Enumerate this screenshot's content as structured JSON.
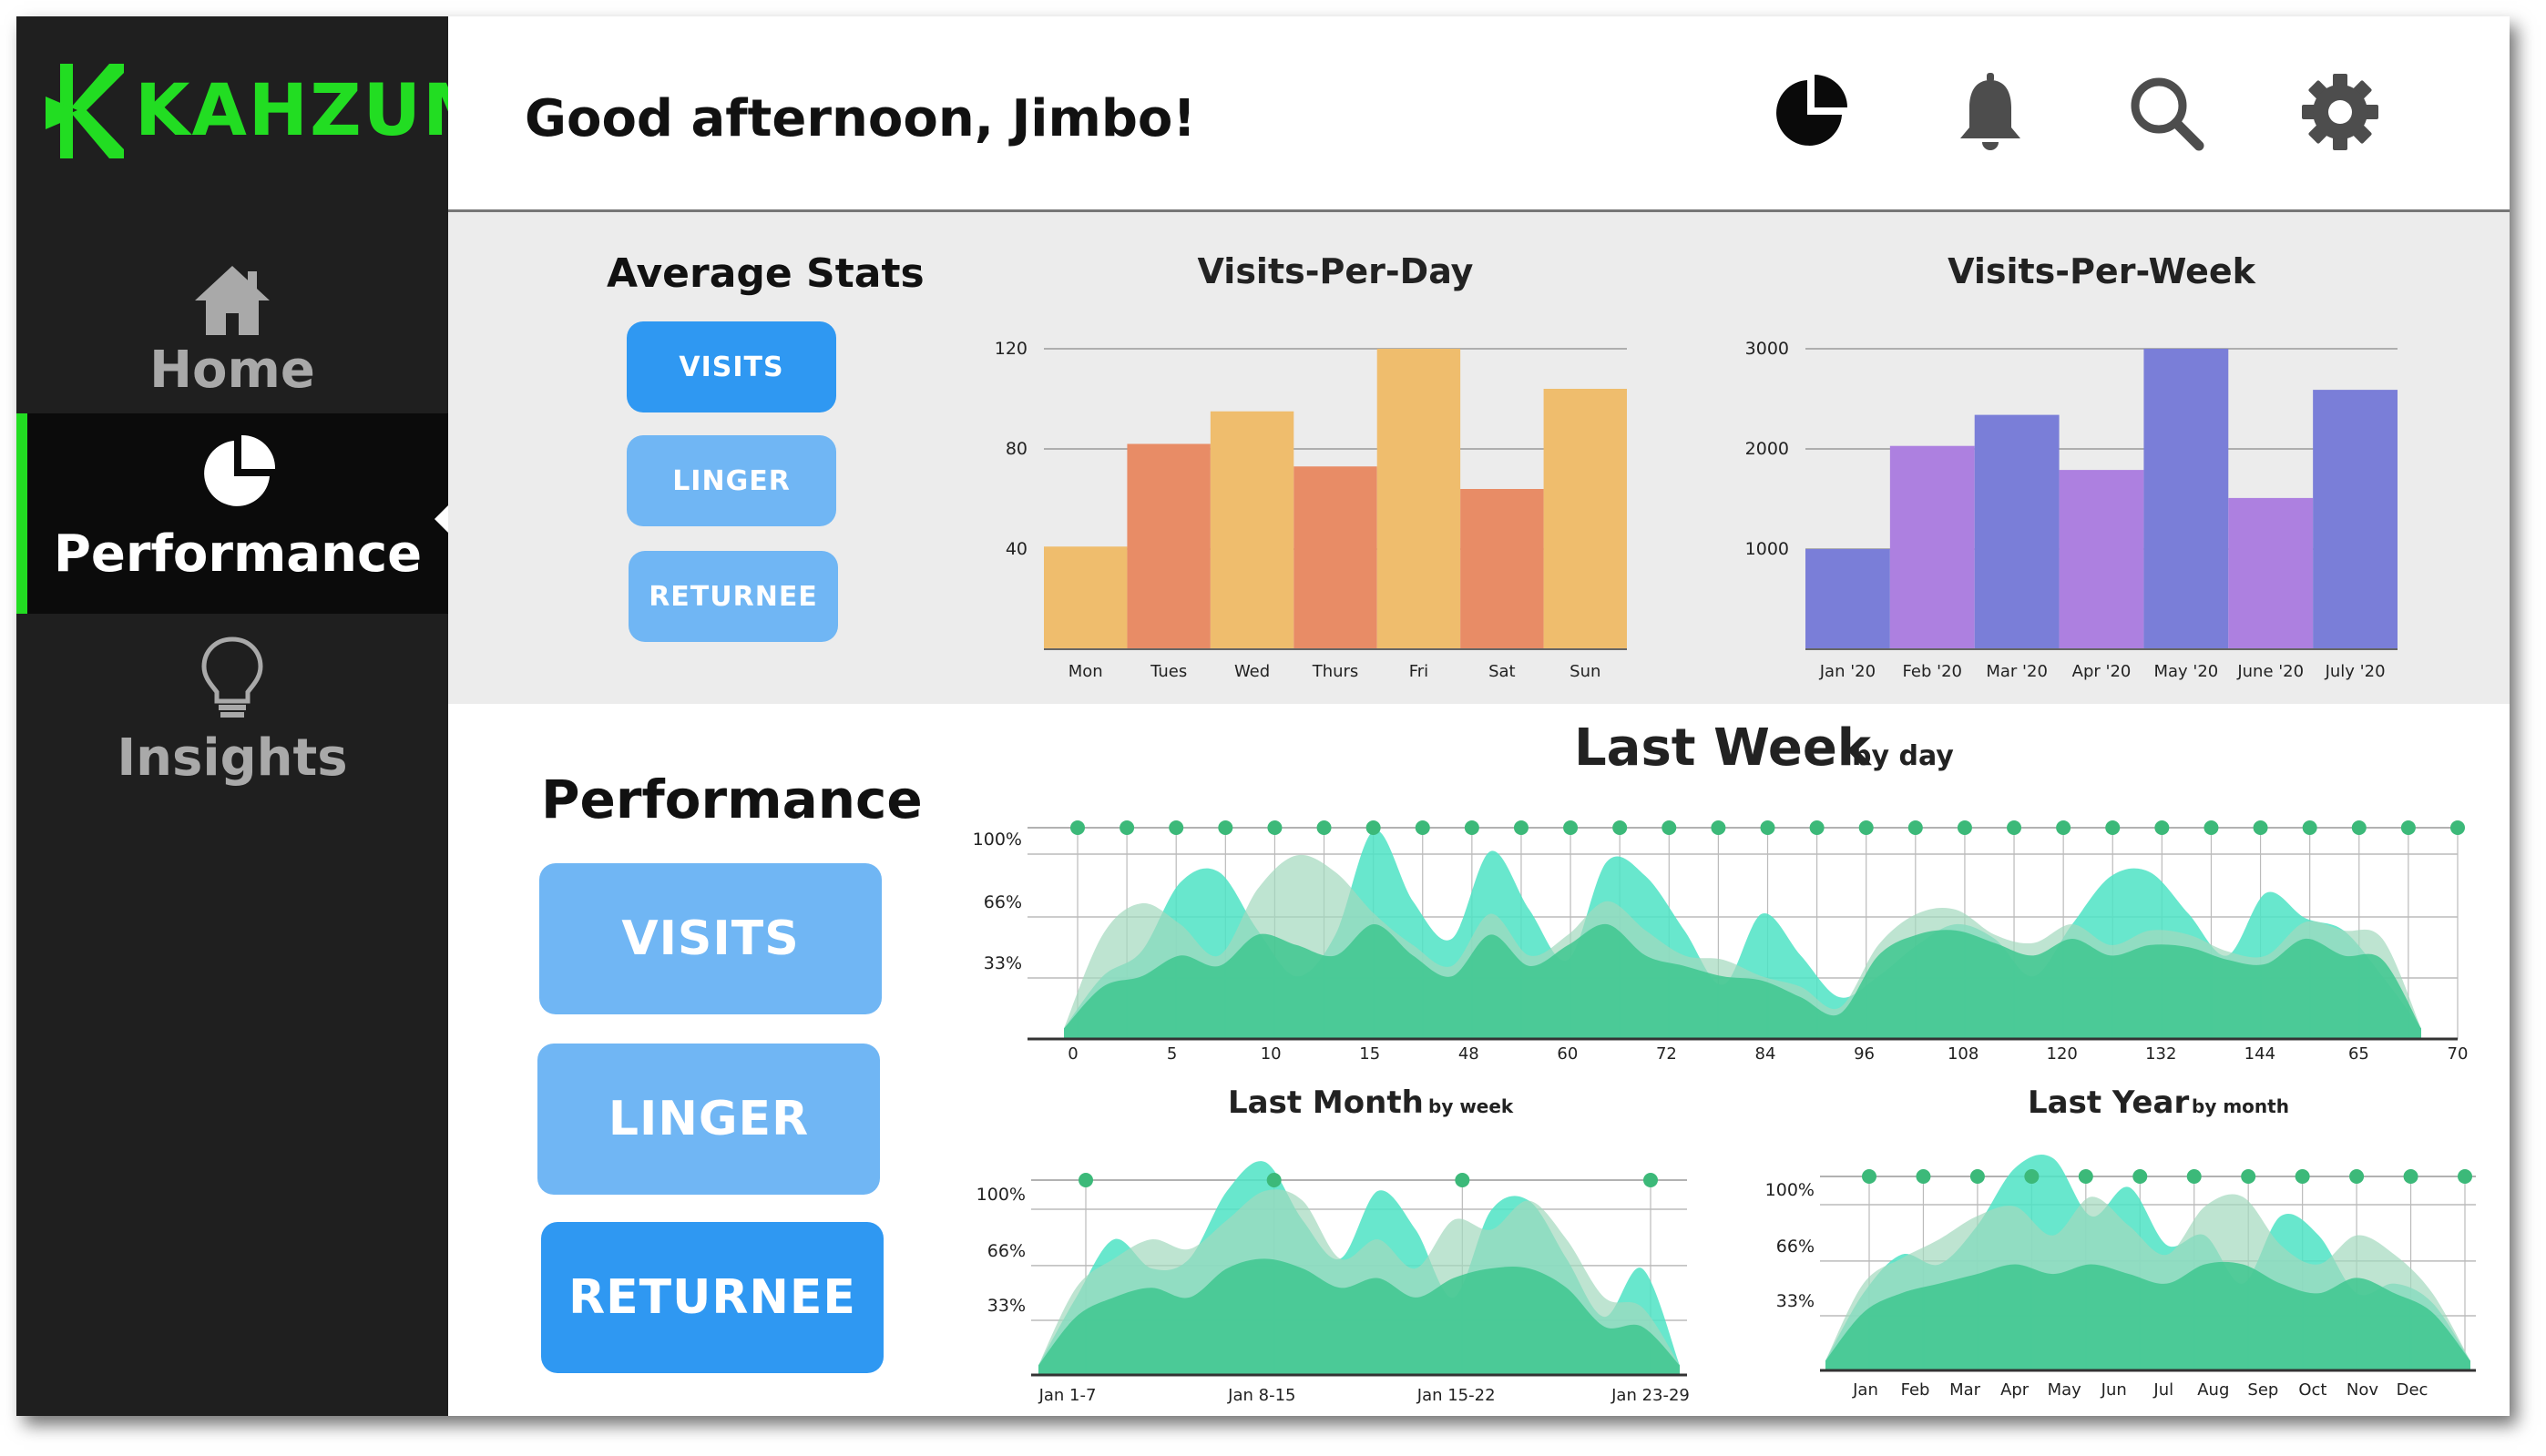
{
  "brand": {
    "name": "KAHZUM",
    "accent": "#22dd22"
  },
  "sidebar": {
    "items": [
      {
        "label": "Home",
        "icon": "home-icon"
      },
      {
        "label": "Performance",
        "icon": "pie-chart-icon",
        "active": true
      },
      {
        "label": "Insights",
        "icon": "lightbulb-icon"
      }
    ]
  },
  "header": {
    "greeting": "Good afternoon, Jimbo!",
    "icons": [
      "pie-chart-icon",
      "bell-icon",
      "search-icon",
      "gear-icon"
    ]
  },
  "average_stats": {
    "title": "Average Stats",
    "buttons": [
      "VISITS",
      "LINGER",
      "RETURNEE"
    ]
  },
  "performance": {
    "title": "Performance",
    "buttons": [
      "VISITS",
      "LINGER",
      "RETURNEE"
    ]
  },
  "chart_data": [
    {
      "type": "bar",
      "title": "Visits-Per-Day",
      "categories": [
        "Mon",
        "Tues",
        "Wed",
        "Thurs",
        "Fri",
        "Sat",
        "Sun"
      ],
      "values": [
        41,
        82,
        95,
        73,
        120,
        64,
        104
      ],
      "yticks": [
        40,
        80,
        120
      ],
      "ylim": [
        0,
        120
      ],
      "colors": [
        "#efbd6d",
        "#e88c66",
        "#efbd6d",
        "#e88c66",
        "#efbd6d",
        "#e88c66",
        "#efbd6d"
      ]
    },
    {
      "type": "bar",
      "title": "Visits-Per-Week",
      "categories": [
        "Jan '20",
        "Feb '20",
        "Mar '20",
        "Apr '20",
        "May '20",
        "June '20",
        "July '20"
      ],
      "values": [
        1000,
        2030,
        2340,
        1790,
        3000,
        1510,
        2590
      ],
      "yticks": [
        1000,
        2000,
        3000
      ],
      "ylim": [
        0,
        3000
      ],
      "colors": [
        "#7a7ed8",
        "#ad80e0",
        "#7a7ed8",
        "#ad80e0",
        "#7a7ed8",
        "#ad80e0",
        "#7a7ed8"
      ]
    },
    {
      "type": "area",
      "title": "Last Week",
      "subtitle": "by day",
      "ytick_labels": [
        "100%",
        "66%",
        "33%"
      ],
      "xtick_labels": [
        "0",
        "5",
        "10",
        "15",
        "48",
        "60",
        "72",
        "84",
        "96",
        "108",
        "120",
        "132",
        "144",
        "65",
        "70"
      ],
      "marker_count": 29,
      "series": [
        {
          "values": [
            5,
            30,
            42,
            75,
            80,
            52,
            30,
            50,
            100,
            66,
            48,
            90,
            62,
            38,
            85,
            78,
            52,
            26,
            60,
            40,
            20,
            30,
            45,
            55,
            48,
            30,
            55,
            78,
            80,
            60,
            40,
            70,
            58,
            52,
            30,
            5
          ]
        },
        {
          "values": [
            5,
            50,
            65,
            55,
            40,
            72,
            88,
            80,
            60,
            45,
            35,
            60,
            40,
            50,
            66,
            52,
            40,
            38,
            30,
            25,
            15,
            45,
            60,
            62,
            50,
            46,
            55,
            45,
            52,
            50,
            42,
            40,
            56,
            52,
            48,
            5
          ]
        },
        {
          "values": [
            5,
            25,
            30,
            40,
            35,
            50,
            45,
            40,
            55,
            40,
            30,
            50,
            35,
            45,
            55,
            40,
            35,
            30,
            28,
            20,
            12,
            40,
            50,
            52,
            46,
            40,
            48,
            40,
            45,
            44,
            38,
            36,
            48,
            40,
            38,
            5
          ]
        }
      ]
    },
    {
      "type": "area",
      "title": "Last Month",
      "subtitle": "by week",
      "ytick_labels": [
        "100%",
        "66%",
        "33%"
      ],
      "xtick_labels": [
        "Jan 1-7",
        "Jan 8-15",
        "Jan 15-22",
        "Jan 23-29"
      ],
      "marker_count": 4,
      "series": [
        {
          "values": [
            5,
            40,
            70,
            55,
            60,
            95,
            110,
            80,
            60,
            95,
            75,
            40,
            85,
            90,
            60,
            30,
            55,
            5
          ]
        },
        {
          "values": [
            5,
            45,
            60,
            70,
            65,
            80,
            95,
            90,
            60,
            70,
            55,
            80,
            75,
            90,
            70,
            40,
            35,
            5
          ]
        },
        {
          "values": [
            5,
            30,
            40,
            45,
            40,
            55,
            60,
            55,
            45,
            50,
            40,
            50,
            55,
            55,
            45,
            25,
            25,
            5
          ]
        }
      ]
    },
    {
      "type": "area",
      "title": "Last Year",
      "subtitle": "by month",
      "ytick_labels": [
        "100%",
        "66%",
        "33%"
      ],
      "xtick_labels": [
        "Jan",
        "Feb",
        "Mar",
        "Apr",
        "May",
        "Jun",
        "Jul",
        "Aug",
        "Sep",
        "Oct",
        "Nov",
        "Dec"
      ],
      "marker_count": 12,
      "series": [
        {
          "values": [
            5,
            40,
            60,
            55,
            75,
            105,
            110,
            80,
            95,
            65,
            70,
            45,
            80,
            70,
            40,
            45,
            35,
            5
          ]
        },
        {
          "values": [
            5,
            45,
            58,
            68,
            80,
            85,
            70,
            90,
            75,
            60,
            85,
            90,
            65,
            55,
            70,
            60,
            40,
            5
          ]
        },
        {
          "values": [
            5,
            30,
            40,
            45,
            50,
            55,
            50,
            55,
            50,
            45,
            55,
            55,
            45,
            40,
            48,
            40,
            30,
            5
          ]
        }
      ]
    }
  ]
}
